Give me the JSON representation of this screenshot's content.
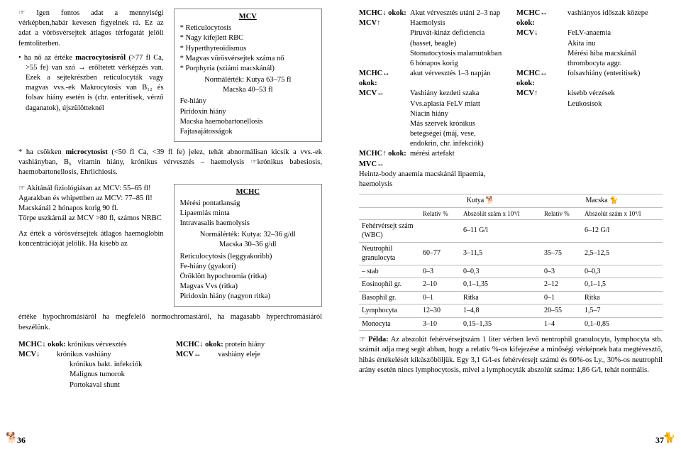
{
  "left": {
    "p1": "Igen fontos adat a mennyiségi vérképben,habár kevesen figyelnek rá. Ez az adat a vörösvérsejtek átlagos térfogatát jelöli femtoliterben.",
    "b1a": "ha nő az értéke ",
    "b1b": "macrocytosisról",
    "b1c": " (>77 fl Ca, >55 fe) van szó",
    "b1d": "erőltetett vérképzés van. Ezek a sejtekrészben reticulocyták vagy magvas vvs.-ek Makrocytosis van B₁₂ és folsav hiány esetén is (chr. enteritisek, vérző daganatok), újszülötteknél",
    "b2a": "ha csökken ",
    "b2b": "microcytosist",
    "b2c": " (<50 fl Ca, <39 fl fe) jelez, tehát abnormálisan kicsik a vvs.-ek vashiányban, B₆ vitamin hiány, krónikus vérvesztés – haemolysis ☞krónikus babesiosis, haemobartonellosis, Ehrlichiosis.",
    "mcv": {
      "title": "MCV",
      "l1": "* Reticulocytosis",
      "l2": "* Nagy kifejlett RBC",
      "l3": "* Hyperthyreoidismus",
      "l4": "* Magvas vörösvérsejtek száma nő",
      "l5": "* Porphyria (sziámi macskánál)",
      "norm": "Normálérték: Kutya 63–75 fl",
      "norm2": "Macska 40–53 fl",
      "l6": "Fe-hiány",
      "l7": "Piridoxin hiány",
      "l8": "Macska haemobartonellosis",
      "l9": "Fajtasajátosságok"
    },
    "aki1": "Akitánál fiziológiásan az MCV: 55–65 fl!",
    "aki2": "Agarakban és whipettben az MCV: 77–85 fl!",
    "aki3": "Macskánál 2 hónapos korig 90 fl.",
    "aki4": "Törpe uszkárnál az MCV >80 fl, számos NRBC",
    "ertek": "Az érték a vörösvérsejtek átlagos haemoglobin koncentrációját jelölik. Ha kisebb az értéke hypochromásiáról ha megfelelő normochromasiáról, ha magasabb hyperchromásiáról beszélünk.",
    "mchc": {
      "title": "MCHC",
      "l1": "Mérési pontatlanság",
      "l2": "Lipaemiás minta",
      "l3": "Intravasalis haemolysis",
      "norm": "Normálérték: Kutya: 32–36 g/dl",
      "norm2": "Macska 30–36 g/dl",
      "l4": "Reticulocytosis (leggyakoribb)",
      "l5": "Fe-hiány (gyakori)",
      "l6": "Öröklött hypochromia (ritka)",
      "l7": "Magvas Vvs (ritka)",
      "l8": "Piridoxin hiány (nagyon ritka)"
    },
    "btm": {
      "a1": "MCHC↓ okok:",
      "a2": "krónikus vérvesztés",
      "b1": "MCV↓",
      "b2": "krónikus vashiány",
      "b3": "krónikus bakt. infekciók",
      "b4": "Malignus tumorok",
      "b5": "Portokaval shunt",
      "c1": "MCHC↓ okok:",
      "c2": "protein hiány",
      "d1": "MCV↔",
      "d2": "vashiány eleje"
    },
    "pgno": "36"
  },
  "right": {
    "colL": {
      "r1l": "MCHC↓ okok:",
      "r1v": "Akut vérvesztés utáni 2–3 nap",
      "r2l": "MCV↑",
      "r2v": "Haemolysis",
      "r2v2": "Piruvát-kináz deficiencia (basset, beagle)",
      "r2v3": "Stomatocytosis malamutokban",
      "r2v4": "6 hónapos korig",
      "r3l": "MCHC↔ okok:",
      "r3v": "akut vérvesztés 1–3 napján",
      "r4l": "MCV↔",
      "r4v": "Vashiány kezdeti szaka",
      "r4v2": "Vvs.aplasia FeLV miatt",
      "r4v3": "Niacin hiány",
      "r4v4": "Más szervek krónikus betegségei (máj, vese, endokrin, chr. infekciók)",
      "r5l": "MCHC↑ okok:",
      "r5v": "mérési artefakt",
      "r6l": "MVC↔",
      "r6v": "Heintz-body anaemia macskánál lipaemia, haemolysis"
    },
    "colR": {
      "r1l": "MCHC↔ okok:",
      "r1v": "vashiányos időszak közepe",
      "r2l": "MCV↓",
      "r2v": "FeLV-anaemia",
      "r2v2": "Akita inu",
      "r2v3": "Mérési hiba macskánál",
      "r2v4": "thrombocyta aggr.",
      "r3l": "MCHC↔ okok:",
      "r3v": "folsavhiány (enteritisek)",
      "r4l": "MCV↑",
      "r4v": "kisebb vérzések",
      "r4v2": "Leukosisok"
    },
    "tbl": {
      "h_dog": "Kutya 🐕",
      "h_cat": "Macska 🐈",
      "h_rel": "Relatív %",
      "h_abs1": "Abszolút szám x 10⁹/l",
      "h_rel2": "Relatív %",
      "h_abs2": "Abszolút szám x 10⁹/l",
      "rows": [
        {
          "n": "Fehérvérsejt szám (WBC)",
          "a": "",
          "b": "6–11 G/l",
          "c": "",
          "d": "6–12 G/l"
        },
        {
          "n": "Neutrophil granulocyta",
          "a": "60–77",
          "b": "3–11,5",
          "c": "35–75",
          "d": "2,5–12,5"
        },
        {
          "n": "– stab",
          "a": "0–3",
          "b": "0–0,3",
          "c": "0–3",
          "d": "0–0,3"
        },
        {
          "n": "Eosinophil gr.",
          "a": "2–10",
          "b": "0,1–1,35",
          "c": "2–12",
          "d": "0,1–1,5"
        },
        {
          "n": "Basophil gr.",
          "a": "0–1",
          "b": "Ritka",
          "c": "0–1",
          "d": "Ritka"
        },
        {
          "n": "Lymphocyta",
          "a": "12–30",
          "b": "1–4,8",
          "c": "20–55",
          "d": "1,5–7"
        },
        {
          "n": "Monocyta",
          "a": "3–10",
          "b": "0,15–1,35",
          "c": "1–4",
          "d": "0,1–0,85"
        }
      ]
    },
    "example_lead": "Példa:",
    "example": " Az abszolút fehérvérsejtszám 1 liter vérben levő nentrophil granulocyta, lymphocyta stb. számát adja meg segít abban, hogy a relatív %-os kifejezése a minőségi vérképnek hata megtévesztő, hibás értékelését kiküszöböljük. Egy 3,1 G/l-es fehérvérsejt számú és 60%-os Ly., 30%-os neutrophil arány esetén nincs lymphocytosis, mivel a lymphocyták abszolút száma: 1,86 G/l, tehát normális.",
    "pgno": "37"
  }
}
